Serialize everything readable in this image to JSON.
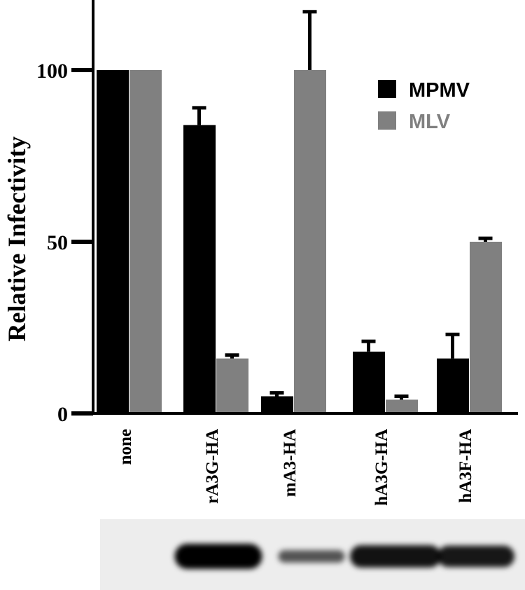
{
  "chart_data": {
    "type": "bar",
    "ylabel": "Relative Infectivity",
    "xlabel": "",
    "title": "",
    "ylim": [
      0,
      100
    ],
    "yticks": [
      "0",
      "50",
      "100"
    ],
    "categories": [
      "none",
      "rA3G-HA",
      "mA3-HA",
      "hA3G-HA",
      "hA3F-HA"
    ],
    "series": [
      {
        "name": "MPMV",
        "color": "#000000",
        "values": [
          100,
          84,
          5,
          18,
          16
        ],
        "errors": [
          0,
          5,
          1,
          3,
          7
        ]
      },
      {
        "name": "MLV",
        "color": "#808080",
        "values": [
          100,
          16,
          100,
          4,
          50
        ],
        "errors": [
          0,
          1,
          17,
          1,
          1
        ]
      }
    ],
    "legend_position": "top-right",
    "grid": false,
    "western_blot": {
      "band_intensity": [
        0,
        1.0,
        0.3,
        0.85,
        0.8
      ]
    }
  }
}
